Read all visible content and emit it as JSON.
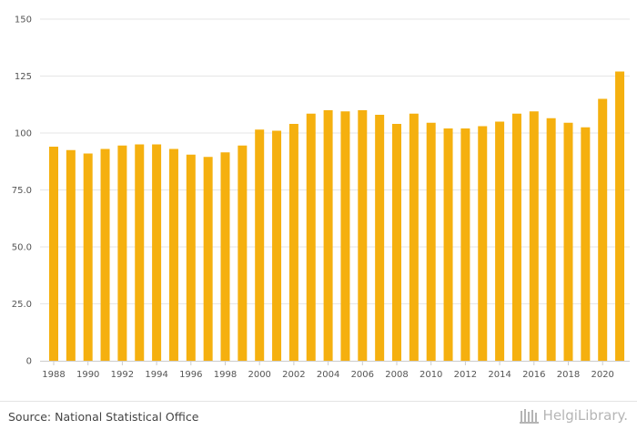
{
  "chart_data": {
    "type": "bar",
    "title": "",
    "xlabel": "",
    "ylabel": "",
    "ylim": [
      0,
      150
    ],
    "yticks": [
      "0",
      "25.0",
      "50.0",
      "75.0",
      "100",
      "125",
      "150"
    ],
    "ytick_values": [
      0,
      25,
      50,
      75,
      100,
      125,
      150
    ],
    "categories": [
      "1988",
      "1989",
      "1990",
      "1991",
      "1992",
      "1993",
      "1994",
      "1995",
      "1996",
      "1997",
      "1998",
      "1999",
      "2000",
      "2001",
      "2002",
      "2003",
      "2004",
      "2005",
      "2006",
      "2007",
      "2008",
      "2009",
      "2010",
      "2011",
      "2012",
      "2013",
      "2014",
      "2015",
      "2016",
      "2017",
      "2018",
      "2019",
      "2020",
      "2021"
    ],
    "xtick_labels": [
      "1988",
      "1990",
      "1992",
      "1994",
      "1996",
      "1998",
      "2000",
      "2002",
      "2004",
      "2006",
      "2008",
      "2010",
      "2012",
      "2014",
      "2016",
      "2018",
      "2020"
    ],
    "values": [
      94,
      92.5,
      91,
      93,
      94.5,
      95,
      95,
      93,
      90.5,
      89.5,
      91.5,
      94.5,
      101.5,
      101,
      104,
      108.5,
      110,
      109.5,
      110,
      108,
      104,
      108.5,
      104.5,
      102,
      102,
      103,
      105,
      108.5,
      109.5,
      106.5,
      104.5,
      102.5,
      115,
      127
    ],
    "bar_color": "#f5b00f",
    "grid": true
  },
  "footer": {
    "source": "Source: National Statistical Office",
    "logo_text": "HelgiLibrary."
  }
}
